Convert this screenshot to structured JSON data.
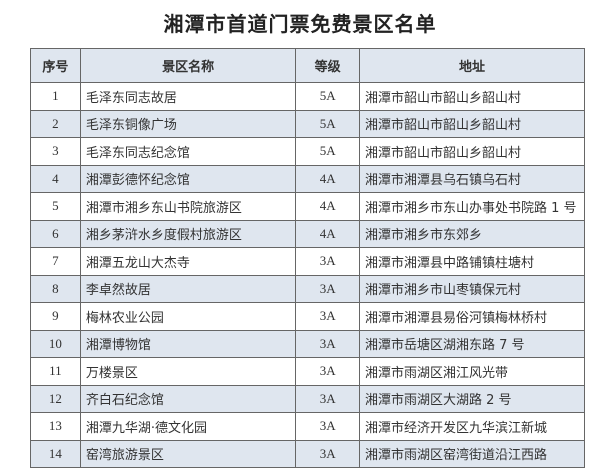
{
  "title": "湘潭市首道门票免费景区名单",
  "headers": [
    "序号",
    "景区名称",
    "等级",
    "地址"
  ],
  "rows": [
    [
      "1",
      "毛泽东同志故居",
      "5A",
      "湘潭市韶山市韶山乡韶山村"
    ],
    [
      "2",
      "毛泽东铜像广场",
      "5A",
      "湘潭市韶山市韶山乡韶山村"
    ],
    [
      "3",
      "毛泽东同志纪念馆",
      "5A",
      "湘潭市韶山市韶山乡韶山村"
    ],
    [
      "4",
      "湘潭彭德怀纪念馆",
      "4A",
      "湘潭市湘潭县乌石镇乌石村"
    ],
    [
      "5",
      "湘潭市湘乡东山书院旅游区",
      "4A",
      "湘潭市湘乡市东山办事处书院路 1 号"
    ],
    [
      "6",
      "湘乡茅浒水乡度假村旅游区",
      "4A",
      "湘潭市湘乡市东郊乡"
    ],
    [
      "7",
      "湘潭五龙山大杰寺",
      "3A",
      "湘潭市湘潭县中路铺镇柱塘村"
    ],
    [
      "8",
      "李卓然故居",
      "3A",
      "湘潭市湘乡市山枣镇保元村"
    ],
    [
      "9",
      "梅林农业公园",
      "3A",
      "湘潭市湘潭县易俗河镇梅林桥村"
    ],
    [
      "10",
      "湘潭博物馆",
      "3A",
      "湘潭市岳塘区湖湘东路 7 号"
    ],
    [
      "11",
      "万楼景区",
      "3A",
      "湘潭市雨湖区湘江风光带"
    ],
    [
      "12",
      "齐白石纪念馆",
      "3A",
      "湘潭市雨湖区大湖路 2 号"
    ],
    [
      "13",
      "湘潭九华湖·德文化园",
      "3A",
      "湘潭市经济开发区九华滨江新城"
    ],
    [
      "14",
      "窑湾旅游景区",
      "3A",
      "湘潭市雨湖区窑湾街道沿江西路"
    ]
  ],
  "colors": {
    "stripe": "#dfe6ef",
    "border": "#666666"
  }
}
